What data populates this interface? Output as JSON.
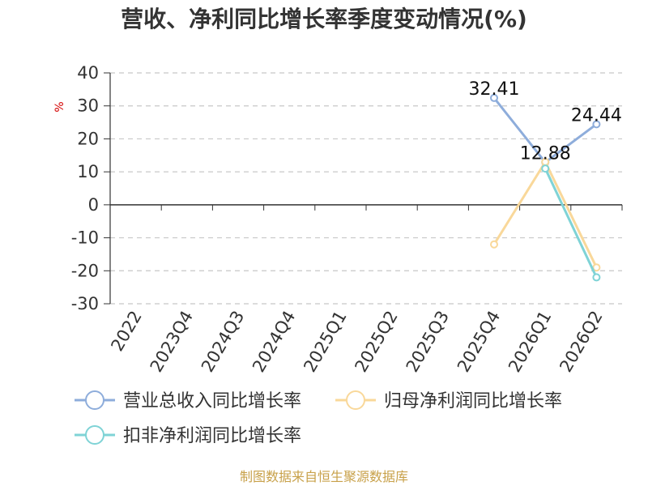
{
  "chart_data": {
    "type": "line",
    "title": "营收、净利同比增长率季度变动情况(%)",
    "ylabel": "%",
    "xlabel": "",
    "ylim": [
      -30,
      40
    ],
    "yticks": [
      40,
      30,
      20,
      10,
      0,
      -10,
      -20,
      -30
    ],
    "categories": [
      "2022",
      "2023Q4",
      "2024Q3",
      "2024Q4",
      "2025Q1",
      "2025Q2",
      "2025Q3",
      "2025Q4",
      "2026Q1",
      "2026Q2"
    ],
    "series": [
      {
        "name": "营业总收入同比增长率",
        "color": "#8eaddb",
        "values": [
          null,
          null,
          null,
          null,
          null,
          null,
          null,
          32.41,
          12.88,
          24.44
        ],
        "labels": [
          null,
          null,
          null,
          null,
          null,
          null,
          null,
          "32.41",
          "12.88",
          "24.44"
        ]
      },
      {
        "name": "归母净利润同比增长率",
        "color": "#f9d89a",
        "values": [
          null,
          null,
          null,
          null,
          null,
          null,
          null,
          -12,
          13,
          -19
        ],
        "labels": [
          null,
          null,
          null,
          null,
          null,
          null,
          null,
          null,
          null,
          null
        ]
      },
      {
        "name": "扣非净利润同比增长率",
        "color": "#7fd3d6",
        "values": [
          null,
          null,
          null,
          null,
          null,
          null,
          null,
          null,
          11,
          -22
        ],
        "labels": [
          null,
          null,
          null,
          null,
          null,
          null,
          null,
          null,
          null,
          null
        ]
      }
    ],
    "grid": true,
    "legend": "bottom"
  },
  "source": "制图数据来自恒生聚源数据库"
}
